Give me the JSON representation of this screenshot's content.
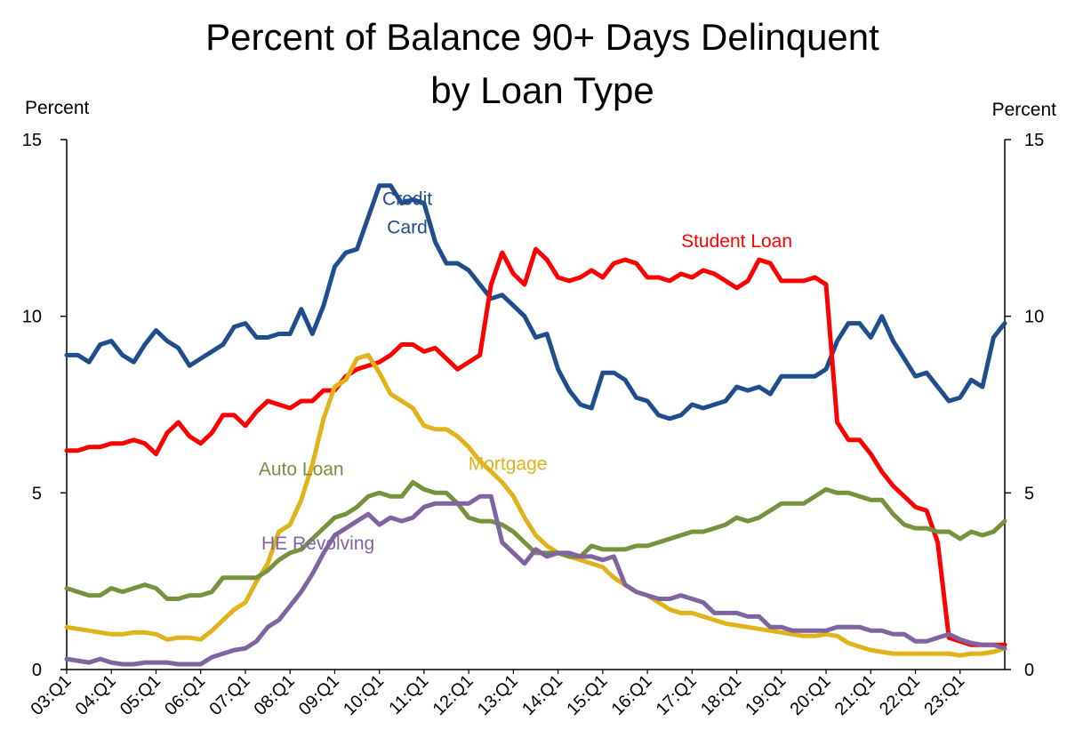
{
  "chart_data": {
    "type": "line",
    "title_lines": [
      "Percent of Balance 90+ Days Delinquent",
      "by Loan Type"
    ],
    "ylabel_left": "Percent",
    "ylabel_right": "Percent",
    "ylim": [
      0,
      15
    ],
    "yticks": [
      0,
      5,
      10,
      15
    ],
    "grid": false,
    "x_start": "2003Q1",
    "x_end": "2023Q4",
    "xticks": [
      "03:Q1",
      "04:Q1",
      "05:Q1",
      "06:Q1",
      "07:Q1",
      "08:Q1",
      "09:Q1",
      "10:Q1",
      "11:Q1",
      "12:Q1",
      "13:Q1",
      "14:Q1",
      "15:Q1",
      "16:Q1",
      "17:Q1",
      "18:Q1",
      "19:Q1",
      "20:Q1",
      "21:Q1",
      "22:Q1",
      "23:Q1"
    ],
    "series": [
      {
        "name": "Credit Card",
        "label_lines": [
          "Credit",
          "Card"
        ],
        "color": "#1F4E8C",
        "values": [
          8.9,
          8.9,
          8.7,
          9.2,
          9.3,
          8.9,
          8.7,
          9.2,
          9.6,
          9.3,
          9.1,
          8.6,
          8.8,
          9.0,
          9.2,
          9.7,
          9.8,
          9.4,
          9.4,
          9.5,
          9.5,
          10.2,
          9.5,
          10.3,
          11.4,
          11.8,
          11.9,
          12.8,
          13.7,
          13.7,
          13.2,
          13.3,
          13.2,
          12.1,
          11.5,
          11.5,
          11.3,
          10.9,
          10.5,
          10.6,
          10.3,
          10.0,
          9.4,
          9.5,
          8.5,
          7.9,
          7.5,
          7.4,
          8.4,
          8.4,
          8.2,
          7.7,
          7.6,
          7.2,
          7.1,
          7.2,
          7.5,
          7.4,
          7.5,
          7.6,
          8.0,
          7.9,
          8.0,
          7.8,
          8.3,
          8.3,
          8.3,
          8.3,
          8.5,
          9.3,
          9.8,
          9.8,
          9.4,
          10.0,
          9.3,
          8.8,
          8.3,
          8.4,
          8.0,
          7.6,
          7.7,
          8.2,
          8.0,
          9.4,
          9.8
        ]
      },
      {
        "name": "Student Loan",
        "label_lines": [
          "Student Loan"
        ],
        "color": "#FF0000",
        "values": [
          6.2,
          6.2,
          6.3,
          6.3,
          6.4,
          6.4,
          6.5,
          6.4,
          6.1,
          6.7,
          7.0,
          6.6,
          6.4,
          6.7,
          7.2,
          7.2,
          6.9,
          7.3,
          7.6,
          7.5,
          7.4,
          7.6,
          7.6,
          7.9,
          7.9,
          8.3,
          8.5,
          8.6,
          8.7,
          8.9,
          9.2,
          9.2,
          9.0,
          9.1,
          8.8,
          8.5,
          8.7,
          8.9,
          10.9,
          11.8,
          11.2,
          10.9,
          11.9,
          11.6,
          11.1,
          11.0,
          11.1,
          11.3,
          11.1,
          11.5,
          11.6,
          11.5,
          11.1,
          11.1,
          11.0,
          11.2,
          11.1,
          11.3,
          11.2,
          11.0,
          10.8,
          11.0,
          11.6,
          11.5,
          11.0,
          11.0,
          11.0,
          11.1,
          10.9,
          7.0,
          6.5,
          6.5,
          6.1,
          5.6,
          5.2,
          4.9,
          4.6,
          4.5,
          3.6,
          0.9,
          0.8,
          0.7,
          0.7,
          0.7,
          0.7
        ]
      },
      {
        "name": "Mortgage",
        "label_lines": [
          "Mortgage"
        ],
        "color": "#E0B31B",
        "values": [
          1.2,
          1.15,
          1.1,
          1.05,
          1.0,
          1.0,
          1.05,
          1.05,
          1.0,
          0.85,
          0.9,
          0.9,
          0.85,
          1.1,
          1.4,
          1.7,
          1.9,
          2.5,
          3.0,
          3.9,
          4.1,
          4.8,
          5.8,
          7.1,
          8.0,
          8.2,
          8.8,
          8.9,
          8.4,
          7.8,
          7.6,
          7.4,
          6.9,
          6.8,
          6.8,
          6.6,
          6.3,
          5.9,
          5.6,
          5.3,
          4.9,
          4.3,
          3.8,
          3.5,
          3.3,
          3.2,
          3.1,
          3.0,
          2.9,
          2.6,
          2.4,
          2.2,
          2.1,
          1.9,
          1.7,
          1.6,
          1.6,
          1.5,
          1.4,
          1.3,
          1.25,
          1.2,
          1.15,
          1.1,
          1.05,
          1.0,
          0.95,
          0.95,
          1.0,
          0.95,
          0.75,
          0.65,
          0.55,
          0.5,
          0.45,
          0.45,
          0.45,
          0.45,
          0.45,
          0.45,
          0.4,
          0.45,
          0.45,
          0.5,
          0.6
        ]
      },
      {
        "name": "Auto Loan",
        "label_lines": [
          "Auto Loan"
        ],
        "color": "#76923C",
        "values": [
          2.3,
          2.2,
          2.1,
          2.1,
          2.3,
          2.2,
          2.3,
          2.4,
          2.3,
          2.0,
          2.0,
          2.1,
          2.1,
          2.2,
          2.6,
          2.6,
          2.6,
          2.6,
          2.8,
          3.1,
          3.3,
          3.4,
          3.7,
          4.0,
          4.3,
          4.4,
          4.6,
          4.9,
          5.0,
          4.9,
          4.9,
          5.3,
          5.1,
          5.0,
          5.0,
          4.7,
          4.3,
          4.2,
          4.2,
          4.1,
          3.9,
          3.6,
          3.3,
          3.3,
          3.3,
          3.2,
          3.2,
          3.5,
          3.4,
          3.4,
          3.4,
          3.5,
          3.5,
          3.6,
          3.7,
          3.8,
          3.9,
          3.9,
          4.0,
          4.1,
          4.3,
          4.2,
          4.3,
          4.5,
          4.7,
          4.7,
          4.7,
          4.9,
          5.1,
          5.0,
          5.0,
          4.9,
          4.8,
          4.8,
          4.4,
          4.1,
          4.0,
          4.0,
          3.9,
          3.9,
          3.7,
          3.9,
          3.8,
          3.9,
          4.2
        ]
      },
      {
        "name": "HE Revolving",
        "label_lines": [
          "HE Revolving"
        ],
        "color": "#8064A2",
        "values": [
          0.3,
          0.25,
          0.2,
          0.3,
          0.2,
          0.15,
          0.15,
          0.2,
          0.2,
          0.2,
          0.15,
          0.15,
          0.15,
          0.35,
          0.45,
          0.55,
          0.6,
          0.8,
          1.2,
          1.4,
          1.8,
          2.2,
          2.7,
          3.3,
          3.8,
          4.0,
          4.2,
          4.4,
          4.1,
          4.3,
          4.2,
          4.3,
          4.6,
          4.7,
          4.7,
          4.7,
          4.7,
          4.9,
          4.9,
          3.6,
          3.3,
          3.0,
          3.4,
          3.2,
          3.3,
          3.3,
          3.2,
          3.2,
          3.1,
          3.2,
          2.4,
          2.2,
          2.1,
          2.0,
          2.0,
          2.1,
          2.0,
          1.9,
          1.6,
          1.6,
          1.6,
          1.5,
          1.5,
          1.2,
          1.2,
          1.1,
          1.1,
          1.1,
          1.1,
          1.2,
          1.2,
          1.2,
          1.1,
          1.1,
          1.0,
          1.0,
          0.8,
          0.8,
          0.9,
          1.0,
          0.85,
          0.75,
          0.7,
          0.7,
          0.6
        ]
      }
    ]
  }
}
